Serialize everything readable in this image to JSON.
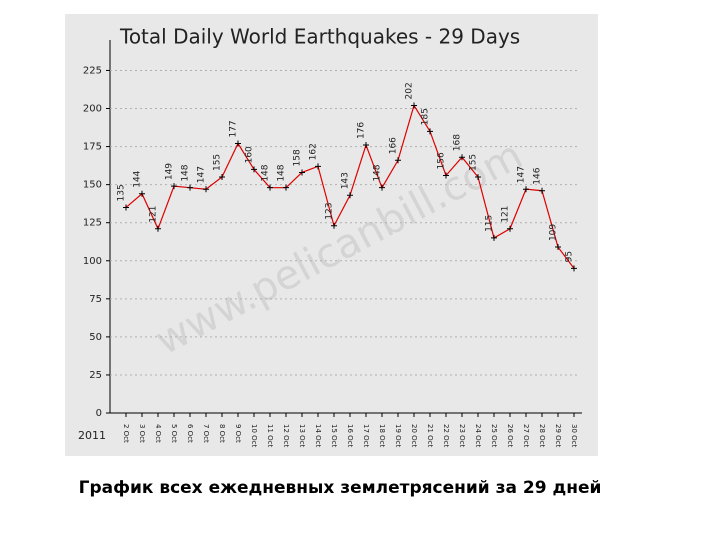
{
  "chart_data": {
    "type": "line",
    "title": "Total Daily World Earthquakes - 29 Days",
    "categories": [
      "2 Oct",
      "3 Oct",
      "4 Oct",
      "5 Oct",
      "6 Oct",
      "7 Oct",
      "8 Oct",
      "9 Oct",
      "10 Oct",
      "11 Oct",
      "12 Oct",
      "13 Oct",
      "14 Oct",
      "15 Oct",
      "16 Oct",
      "17 Oct",
      "18 Oct",
      "19 Oct",
      "20 Oct",
      "21 Oct",
      "22 Oct",
      "23 Oct",
      "24 Oct",
      "25 Oct",
      "26 Oct",
      "27 Oct",
      "28 Oct",
      "29 Oct",
      "30 Oct"
    ],
    "x_year_label": "2011",
    "series": [
      {
        "color": "#e00000",
        "values": [
          135,
          144,
          121,
          149,
          148,
          147,
          155,
          177,
          160,
          148,
          148,
          158,
          162,
          123,
          143,
          176,
          148,
          166,
          202,
          185,
          156,
          168,
          155,
          115,
          121,
          147,
          146,
          109,
          95
        ]
      }
    ],
    "ylim": [
      0,
      245
    ],
    "yticks": [
      0,
      25,
      50,
      75,
      100,
      125,
      150,
      175,
      200,
      225
    ],
    "grid": true,
    "watermark": "www.pelicanbill.com",
    "caption": "График всех ежедневных землетрясений за 29 дней"
  }
}
